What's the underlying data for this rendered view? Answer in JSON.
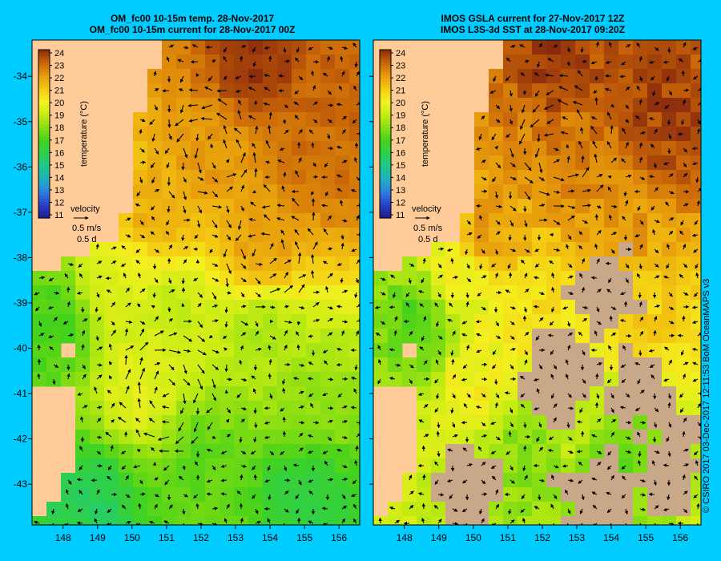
{
  "chart_data": [
    {
      "type": "heatmap",
      "title": "OM_fc00 10-15m temp. 28-Nov-2017",
      "subtitle": "OM_fc00 10-15m current for 28-Nov-2017 00Z",
      "xlim": [
        147.1,
        156.6
      ],
      "ylim": [
        -43.9,
        -33.2
      ],
      "x_ticks": [
        "148",
        "149",
        "150",
        "151",
        "152",
        "153",
        "154",
        "155",
        "156"
      ],
      "y_ticks": [
        "-34",
        "-35",
        "-36",
        "-37",
        "-38",
        "-39",
        "-40",
        "-41",
        "-42",
        "-43"
      ],
      "colorbar": {
        "label": "temperature (°C)",
        "ticks": [
          "24",
          "23",
          "22",
          "21",
          "20",
          "19",
          "18",
          "17",
          "16",
          "15",
          "14",
          "13",
          "12",
          "11"
        ],
        "range": [
          11,
          24
        ]
      },
      "velocity_legend": {
        "title": "velocity",
        "speed": "0.5 m/s",
        "duration": "0.5 d"
      },
      "temperature_field": [
        {
          "lon": 153.5,
          "lat": -33.8,
          "temp": 23.8
        },
        {
          "lon": 155.8,
          "lat": -34.5,
          "temp": 23.0
        },
        {
          "lon": 152.4,
          "lat": -35.6,
          "temp": 22.0
        },
        {
          "lon": 155.4,
          "lat": -35.8,
          "temp": 22.8
        },
        {
          "lon": 153.8,
          "lat": -37.6,
          "temp": 21.8
        },
        {
          "lon": 150.8,
          "lat": -37.0,
          "temp": 21.6
        },
        {
          "lon": 149.5,
          "lat": -38.6,
          "temp": 19.5
        },
        {
          "lon": 151.2,
          "lat": -39.2,
          "temp": 19.0
        },
        {
          "lon": 153.8,
          "lat": -39.8,
          "temp": 18.6
        },
        {
          "lon": 150.2,
          "lat": -40.8,
          "temp": 19.6
        },
        {
          "lon": 155.2,
          "lat": -41.2,
          "temp": 18.2
        },
        {
          "lon": 152.0,
          "lat": -42.5,
          "temp": 17.4
        },
        {
          "lon": 155.0,
          "lat": -43.2,
          "temp": 16.2
        },
        {
          "lon": 148.8,
          "lat": -43.5,
          "temp": 15.8
        },
        {
          "lon": 147.8,
          "lat": -39.5,
          "temp": 17.0
        }
      ],
      "eddies": [
        {
          "lon": 152.4,
          "lat": -35.6,
          "rotation": "anticlockwise"
        },
        {
          "lon": 153.9,
          "lat": -37.8,
          "rotation": "anticlockwise"
        },
        {
          "lon": 150.9,
          "lat": -40.9,
          "rotation": "clockwise"
        }
      ]
    },
    {
      "type": "heatmap",
      "title": "IMOS GSLA current for 27-Nov-2017 12Z",
      "subtitle": "IMOS L3S-3d SST at 28-Nov-2017 09:20Z",
      "xlim": [
        147.1,
        156.6
      ],
      "ylim": [
        -43.9,
        -33.2
      ],
      "x_ticks": [
        "148",
        "149",
        "150",
        "151",
        "152",
        "153",
        "154",
        "155",
        "156"
      ],
      "y_ticks": [
        "-34",
        "-35",
        "-36",
        "-37",
        "-38",
        "-39",
        "-40",
        "-41",
        "-42",
        "-43"
      ],
      "colorbar": {
        "label": "temperature (°C)",
        "ticks": [
          "24",
          "23",
          "22",
          "21",
          "20",
          "19",
          "18",
          "17",
          "16",
          "15",
          "14",
          "13",
          "12",
          "11"
        ],
        "range": [
          11,
          24
        ]
      },
      "velocity_legend": {
        "title": "velocity",
        "speed": "0.5 m/s",
        "duration": "0.5 d"
      },
      "temperature_field": [
        {
          "lon": 152.5,
          "lat": -33.9,
          "temp": 23.6
        },
        {
          "lon": 155.6,
          "lat": -35.0,
          "temp": 23.5
        },
        {
          "lon": 152.4,
          "lat": -35.6,
          "temp": 22.5
        },
        {
          "lon": 154.0,
          "lat": -37.5,
          "temp": 22.0
        },
        {
          "lon": 150.5,
          "lat": -37.3,
          "temp": 21.8
        },
        {
          "lon": 149.6,
          "lat": -38.6,
          "temp": 19.8
        },
        {
          "lon": 152.0,
          "lat": -39.0,
          "temp": 20.5
        },
        {
          "lon": 154.8,
          "lat": -39.5,
          "temp": 20.8
        },
        {
          "lon": 150.0,
          "lat": -40.8,
          "temp": 20.0
        },
        {
          "lon": 153.0,
          "lat": -41.4,
          "temp": 19.2
        },
        {
          "lon": 151.5,
          "lat": -42.4,
          "temp": 18.0
        },
        {
          "lon": 154.0,
          "lat": -42.2,
          "temp": 17.6
        },
        {
          "lon": 148.5,
          "lat": -39.5,
          "temp": 17.2
        }
      ],
      "missing_data_regions": [
        {
          "lon": 152.5,
          "lat": -40.6
        },
        {
          "lon": 155.0,
          "lat": -41.0
        },
        {
          "lon": 149.8,
          "lat": -43.2
        },
        {
          "lon": 153.5,
          "lat": -43.3
        },
        {
          "lon": 155.9,
          "lat": -42.5
        },
        {
          "lon": 153.7,
          "lat": -38.8
        }
      ],
      "eddies": [
        {
          "lon": 152.4,
          "lat": -35.6,
          "rotation": "anticlockwise"
        }
      ]
    }
  ],
  "credit": "© CSIRO 2017   03-Dec-2017 12:11:53 BoM OceanMAPS v3",
  "colors": {
    "background": "#00ccff",
    "land": "#ffcc99",
    "missing": "#c8a886",
    "arrow": "#000000"
  }
}
